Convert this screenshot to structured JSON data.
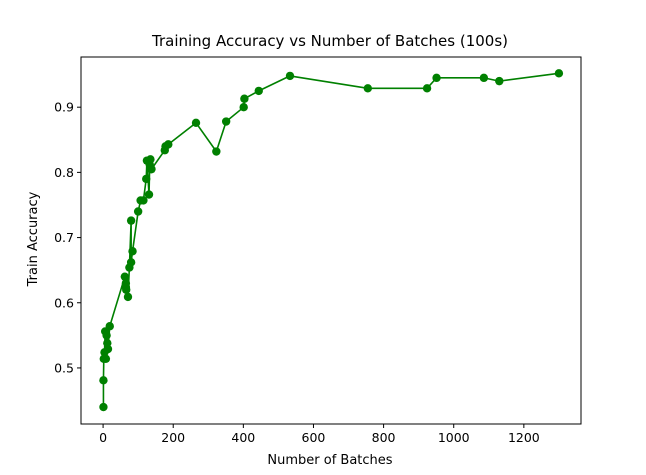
{
  "chart_data": {
    "type": "line",
    "title": "Training Accuracy vs Number of Batches (100s)",
    "xlabel": "Number of Batches",
    "ylabel": "Train Accuracy",
    "xlim": [
      -63,
      1363
    ],
    "ylim": [
      0.414,
      0.977
    ],
    "xticks": [
      0,
      200,
      400,
      600,
      800,
      1000,
      1200
    ],
    "yticks": [
      0.5,
      0.6,
      0.7,
      0.8,
      0.9
    ],
    "ytick_labels": [
      "0.5",
      "0.6",
      "0.7",
      "0.8",
      "0.9"
    ],
    "grid": false,
    "colors": {
      "series": "#008000"
    },
    "series": [
      {
        "x": [
          1,
          1,
          2,
          4,
          6,
          8,
          10,
          12,
          14,
          19,
          62,
          65,
          65,
          66,
          71,
          75,
          80,
          80,
          84,
          100,
          107,
          115,
          123,
          125,
          131,
          133,
          135,
          137,
          138,
          176,
          178,
          186,
          265,
          323,
          351,
          401,
          403,
          444,
          533,
          755,
          924,
          951,
          1086,
          1130,
          1300
        ],
        "y": [
          0.44,
          0.481,
          0.514,
          0.524,
          0.556,
          0.514,
          0.55,
          0.538,
          0.529,
          0.564,
          0.64,
          0.63,
          0.624,
          0.62,
          0.609,
          0.654,
          0.726,
          0.662,
          0.679,
          0.74,
          0.757,
          0.757,
          0.79,
          0.818,
          0.766,
          0.812,
          0.82,
          0.805,
          0.805,
          0.834,
          0.84,
          0.843,
          0.876,
          0.832,
          0.878,
          0.9,
          0.913,
          0.925,
          0.948,
          0.929,
          0.929,
          0.945,
          0.945,
          0.94,
          0.952
        ]
      }
    ]
  }
}
